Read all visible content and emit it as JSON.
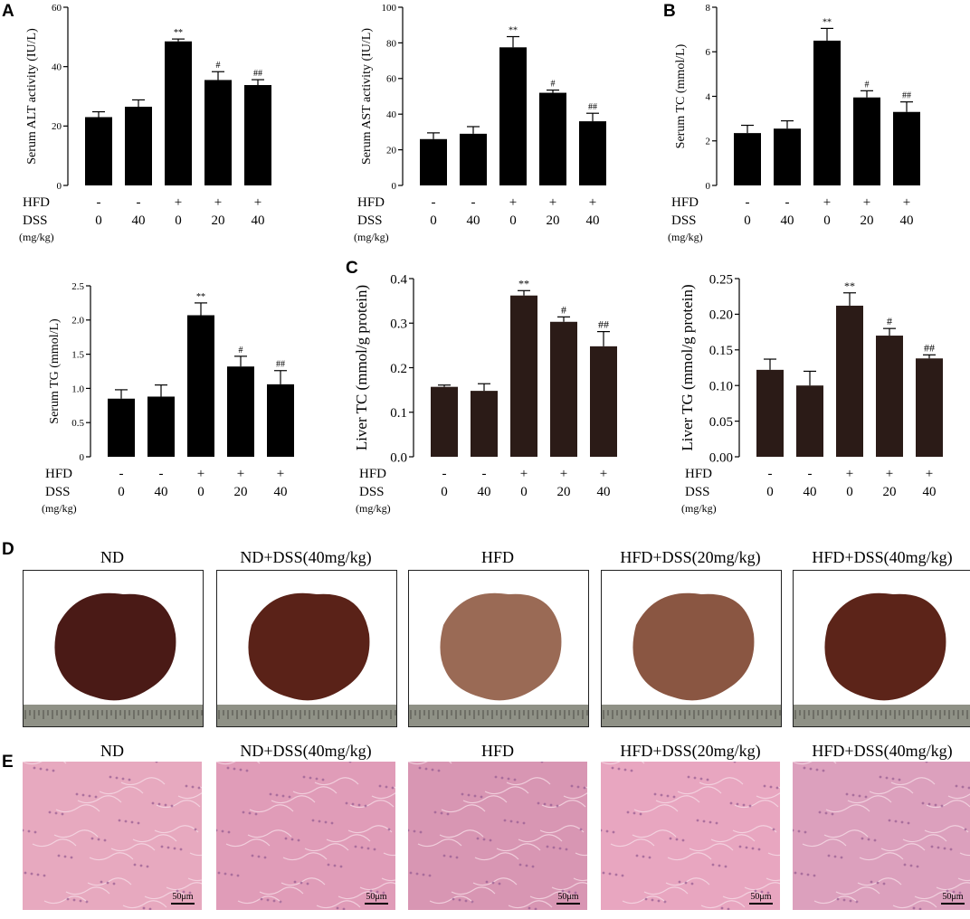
{
  "panel_labels": {
    "a": "A",
    "b": "B",
    "c": "C",
    "d": "D",
    "e": "E"
  },
  "group_axis": {
    "row_hfd": "HFD",
    "row_dss": "DSS",
    "dss_unit": "(mg/kg)",
    "hfd_marks": [
      "-",
      "-",
      "+",
      "+",
      "+"
    ],
    "dss_doses": [
      "0",
      "40",
      "0",
      "20",
      "40"
    ]
  },
  "chart_data": [
    {
      "type": "bar",
      "ylabel": "Serum ALT activity (IU/L)",
      "ylim": [
        0,
        60
      ],
      "yticks": [
        "0",
        "20",
        "40",
        "60"
      ],
      "values": [
        23,
        26.5,
        48.5,
        35.5,
        33.8
      ],
      "errors": [
        1.8,
        2.3,
        0.8,
        2.8,
        1.8
      ],
      "annotations": [
        "",
        "",
        "**",
        "#",
        "##"
      ]
    },
    {
      "type": "bar",
      "ylabel": "Serum AST activity (IU/L)",
      "ylim": [
        0,
        100
      ],
      "yticks": [
        "0",
        "20",
        "40",
        "60",
        "80",
        "100"
      ],
      "values": [
        26,
        29,
        77.5,
        52,
        36
      ],
      "errors": [
        3.5,
        4,
        6,
        1.5,
        4.5
      ],
      "annotations": [
        "",
        "",
        "**",
        "#",
        "##"
      ]
    },
    {
      "type": "bar",
      "ylabel": "Serum TC (mmol/L)",
      "ylim": [
        0,
        8
      ],
      "yticks": [
        "0",
        "2",
        "4",
        "6",
        "8"
      ],
      "values": [
        2.35,
        2.55,
        6.5,
        3.95,
        3.3
      ],
      "errors": [
        0.35,
        0.35,
        0.55,
        0.3,
        0.45
      ],
      "annotations": [
        "",
        "",
        "**",
        "#",
        "##"
      ]
    },
    {
      "type": "bar",
      "ylabel": "Serum TG (mmol/L)",
      "ylim": [
        0,
        2.5
      ],
      "yticks": [
        "0",
        "0.5",
        "1.0",
        "1.5",
        "2.0",
        "2.5"
      ],
      "values": [
        0.85,
        0.88,
        2.07,
        1.32,
        1.06
      ],
      "errors": [
        0.13,
        0.17,
        0.18,
        0.15,
        0.2
      ],
      "annotations": [
        "",
        "",
        "**",
        "#",
        "##"
      ]
    },
    {
      "type": "bar",
      "ylabel": "Liver TC (mmol/g protein)",
      "ylim": [
        0,
        0.4
      ],
      "yticks": [
        "0.0",
        "0.1",
        "0.2",
        "0.3",
        "0.4"
      ],
      "values": [
        0.157,
        0.148,
        0.362,
        0.303,
        0.248
      ],
      "errors": [
        0.004,
        0.016,
        0.011,
        0.011,
        0.033
      ],
      "annotations": [
        "",
        "",
        "**",
        "#",
        "##"
      ]
    },
    {
      "type": "bar",
      "ylabel": "Liver TG (mmol/g protein)",
      "ylim": [
        0,
        0.25
      ],
      "yticks": [
        "0.00",
        "0.05",
        "0.10",
        "0.15",
        "0.20",
        "0.25"
      ],
      "values": [
        0.122,
        0.1,
        0.212,
        0.17,
        0.138
      ],
      "errors": [
        0.015,
        0.02,
        0.018,
        0.01,
        0.005
      ],
      "annotations": [
        "",
        "",
        "**",
        "#",
        "##"
      ]
    }
  ],
  "groups": [
    "ND",
    "ND+DSS(40mg/kg)",
    "HFD",
    "HFD+DSS(20mg/kg)",
    "HFD+DSS(40mg/kg)"
  ],
  "liver_colors": [
    "#4a1a16",
    "#5a2218",
    "#9a6a55",
    "#8a5642",
    "#5c2419"
  ],
  "histo_colors": [
    "#e7a9bf",
    "#e09cb8",
    "#d896b3",
    "#e8a6c0",
    "#dca0bd"
  ],
  "scale_label": "50μm"
}
